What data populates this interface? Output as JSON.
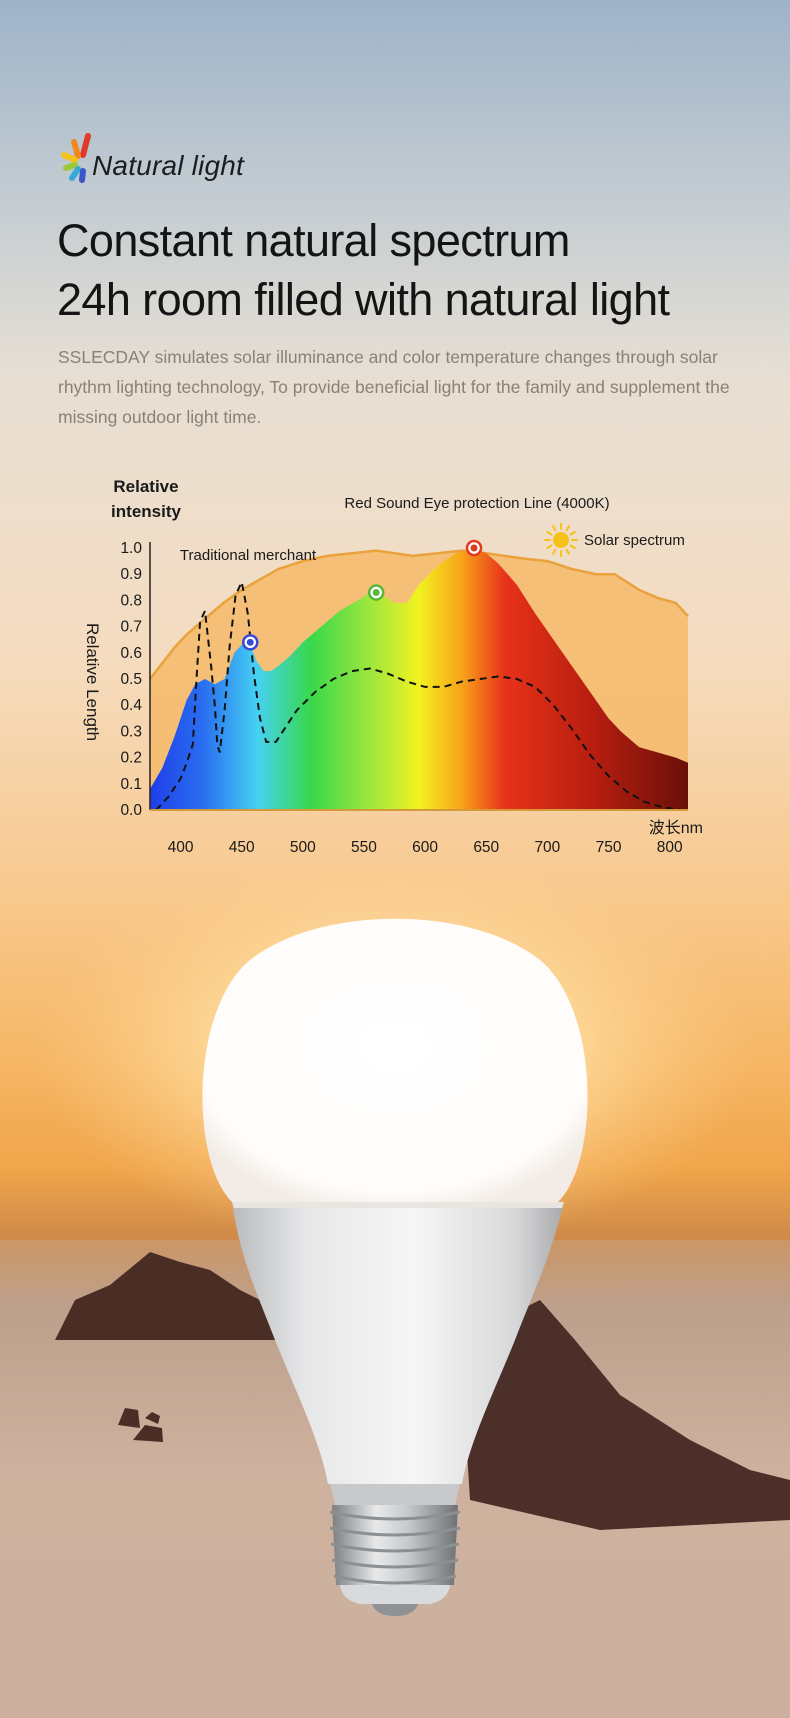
{
  "brand": {
    "logo_text": "Natural light",
    "logo_icon": "rainbow-petals-icon"
  },
  "headline": {
    "line1": "Constant natural spectrum",
    "line2": "24h room filled with natural light"
  },
  "description": "SSLECDAY simulates solar illuminance and color temperature changes through solar rhythm lighting technology, To provide beneficial light for the family and supplement the missing outdoor light time.",
  "colors": {
    "solar_fill": "#f6ba6a",
    "solar_stroke": "#e9a23c",
    "headline": "#141414",
    "description": "#8a8275"
  },
  "chart_data": {
    "type": "area",
    "ylabel": "Relative intensity",
    "ylabel_side": "Relative Length",
    "xlabel": "波长nm",
    "xlim": [
      375,
      815
    ],
    "ylim": [
      0,
      1.0
    ],
    "x_ticks": [
      400,
      450,
      500,
      550,
      600,
      650,
      700,
      750,
      800
    ],
    "y_ticks": [
      "1.0",
      "0.9",
      "0.8",
      "0.7",
      "0.6",
      "0.5",
      "0.4",
      "0.3",
      "0.2",
      "0.1",
      "0.0"
    ],
    "legend": {
      "solar": "Solar spectrum",
      "red_sound": "Red Sound Eye protection Line (4000K)",
      "traditional": "Traditional merchant"
    },
    "series": [
      {
        "name": "Solar spectrum",
        "style": "filled-outline",
        "x": [
          375,
          385,
          395,
          405,
          420,
          435,
          450,
          465,
          480,
          500,
          520,
          540,
          560,
          575,
          590,
          610,
          630,
          650,
          665,
          680,
          700,
          720,
          740,
          755,
          765,
          775,
          790,
          805,
          815
        ],
        "y": [
          0.5,
          0.56,
          0.62,
          0.67,
          0.73,
          0.79,
          0.84,
          0.88,
          0.92,
          0.95,
          0.97,
          0.98,
          0.99,
          0.98,
          0.97,
          0.98,
          0.99,
          0.98,
          0.97,
          0.96,
          0.95,
          0.92,
          0.9,
          0.9,
          0.87,
          0.84,
          0.81,
          0.79,
          0.74
        ]
      },
      {
        "name": "Red Sound Eye protection Line (4000K)",
        "style": "rainbow-fill",
        "x": [
          375,
          385,
          395,
          405,
          412,
          420,
          428,
          436,
          444,
          452,
          458,
          462,
          468,
          474,
          480,
          485,
          490,
          500,
          515,
          530,
          545,
          555,
          565,
          575,
          585,
          595,
          610,
          625,
          640,
          650,
          660,
          675,
          690,
          705,
          720,
          735,
          750,
          760,
          775,
          790,
          805,
          815
        ],
        "y": [
          0.08,
          0.16,
          0.28,
          0.42,
          0.48,
          0.5,
          0.48,
          0.5,
          0.6,
          0.64,
          0.62,
          0.57,
          0.53,
          0.53,
          0.55,
          0.57,
          0.59,
          0.64,
          0.7,
          0.76,
          0.8,
          0.83,
          0.82,
          0.79,
          0.79,
          0.86,
          0.93,
          0.98,
          1.0,
          0.98,
          0.94,
          0.86,
          0.75,
          0.65,
          0.55,
          0.45,
          0.35,
          0.3,
          0.24,
          0.22,
          0.2,
          0.18
        ]
      },
      {
        "name": "Traditional merchant",
        "style": "dashed",
        "x": [
          380,
          390,
          400,
          405,
          410,
          413,
          416,
          420,
          425,
          428,
          430,
          432,
          436,
          440,
          445,
          450,
          455,
          460,
          465,
          470,
          478,
          485,
          495,
          510,
          525,
          540,
          555,
          570,
          585,
          600,
          615,
          630,
          645,
          660,
          675,
          690,
          705,
          720,
          735,
          750,
          765,
          780,
          795,
          810
        ],
        "y": [
          0.0,
          0.05,
          0.12,
          0.18,
          0.25,
          0.5,
          0.72,
          0.76,
          0.55,
          0.4,
          0.25,
          0.22,
          0.38,
          0.62,
          0.82,
          0.87,
          0.75,
          0.52,
          0.35,
          0.26,
          0.26,
          0.31,
          0.38,
          0.45,
          0.5,
          0.53,
          0.54,
          0.52,
          0.49,
          0.47,
          0.47,
          0.49,
          0.5,
          0.51,
          0.5,
          0.47,
          0.4,
          0.31,
          0.21,
          0.13,
          0.07,
          0.03,
          0.01,
          0.0
        ]
      }
    ],
    "markers": [
      {
        "x": 457,
        "y": 0.64,
        "color": "#3848d8"
      },
      {
        "x": 560,
        "y": 0.83,
        "color": "#58b838"
      },
      {
        "x": 640,
        "y": 1.0,
        "color": "#e23a1e"
      }
    ]
  }
}
